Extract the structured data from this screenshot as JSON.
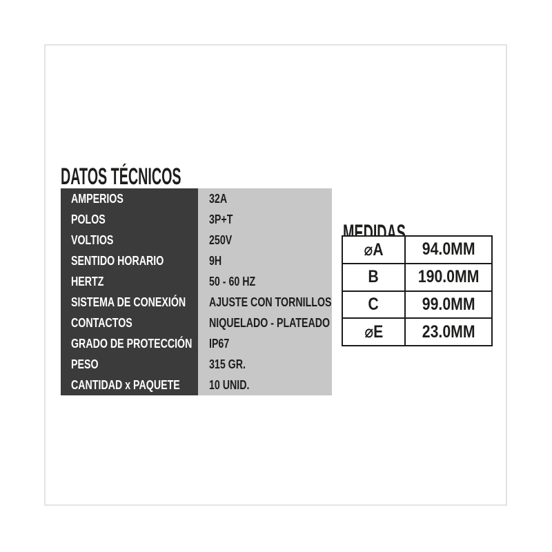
{
  "titles": {
    "datos": "DATOS TÉCNICOS",
    "medidas": "MEDIDAS"
  },
  "spec_table": {
    "rows": [
      {
        "label": "AMPERIOS",
        "value": "32A"
      },
      {
        "label": "POLOS",
        "value": "3P+T"
      },
      {
        "label": "VOLTIOS",
        "value": "250V"
      },
      {
        "label": "SENTIDO HORARIO",
        "value": "9H"
      },
      {
        "label": "HERTZ",
        "value": "50 - 60 HZ"
      },
      {
        "label": "SISTEMA DE CONEXIÓN",
        "value": "AJUSTE CON TORNILLOS"
      },
      {
        "label": "CONTACTOS",
        "value": "NIQUELADO - PLATEADO"
      },
      {
        "label": "GRADO DE PROTECCIÓN",
        "value": "IP67"
      },
      {
        "label": "PESO",
        "value": "315 GR."
      },
      {
        "label": "CANTIDAD x PAQUETE",
        "value": "10 UNID."
      }
    ]
  },
  "medidas_table": {
    "rows": [
      {
        "dim": "⌀A",
        "value": "94.0MM"
      },
      {
        "dim": "B",
        "value": "190.0MM"
      },
      {
        "dim": "C",
        "value": "99.0MM"
      },
      {
        "dim": "⌀E",
        "value": "23.0MM"
      }
    ]
  },
  "colors": {
    "label_bg": "#3b3b3b",
    "value_bg": "#c7c7c7",
    "frame_border": "#e3e3e3",
    "table_border": "#1a1a1a",
    "text_dark": "#1d1d1b"
  }
}
